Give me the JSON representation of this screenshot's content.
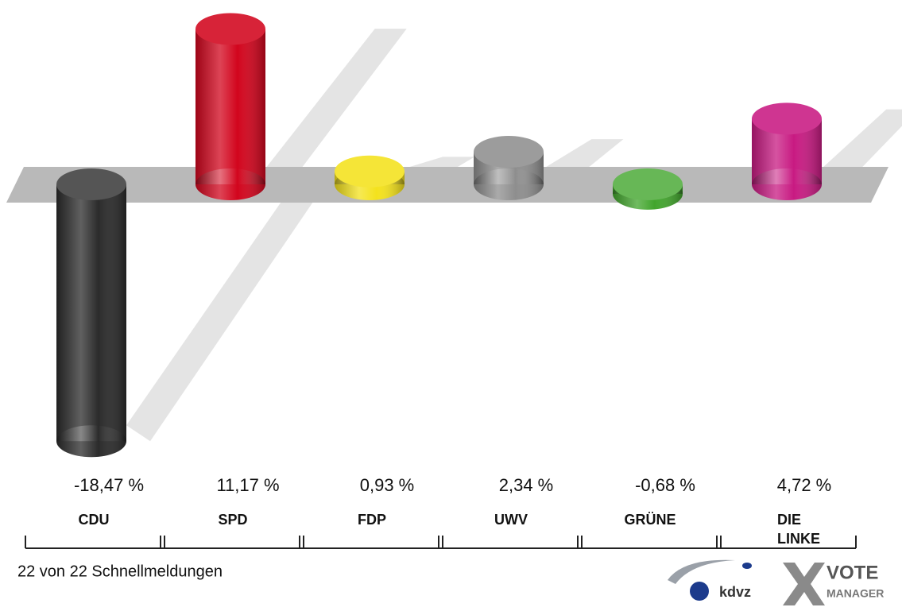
{
  "chart_data": {
    "type": "cylinder",
    "categories": [
      "CDU",
      "SPD",
      "FDP",
      "UWV",
      "GRÜNE",
      "DIE LINKE"
    ],
    "values": [
      -18.47,
      11.17,
      0.93,
      2.34,
      -0.68,
      4.72
    ],
    "value_labels": [
      "-18,47 %",
      "11,17 %",
      "0,93 %",
      "2,34 %",
      "-0,68 %",
      "4,72 %"
    ],
    "colors": [
      "#2b2b2b",
      "#d2051d",
      "#f4e21c",
      "#8e8e8e",
      "#41a52c",
      "#c81a82"
    ],
    "footnote": "22 von 22 Schnellmeldungen",
    "logo": {
      "name": "kdvz",
      "vote": "VOTE",
      "manager": "MANAGER"
    }
  }
}
